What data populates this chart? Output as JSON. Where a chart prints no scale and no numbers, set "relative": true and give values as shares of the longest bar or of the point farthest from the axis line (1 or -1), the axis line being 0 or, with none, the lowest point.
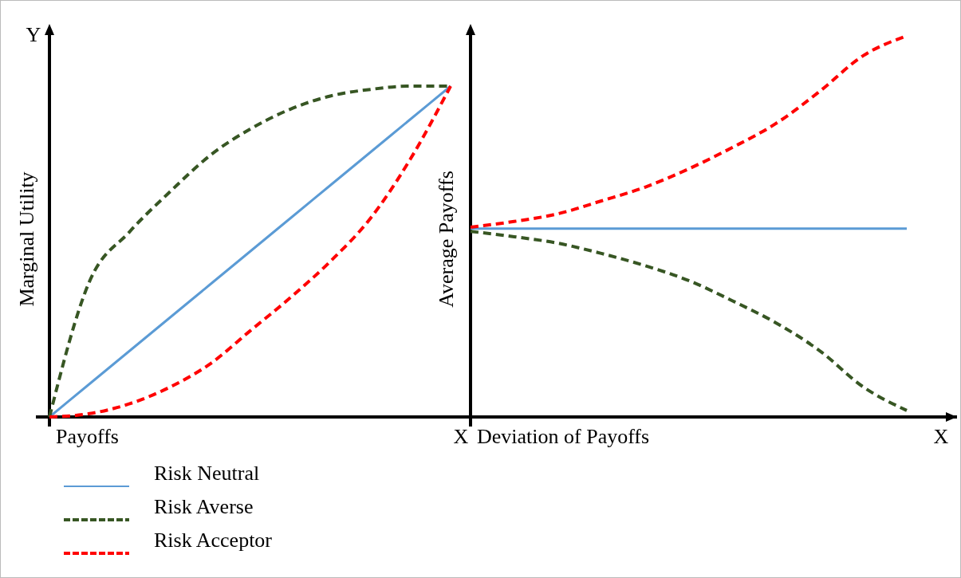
{
  "chart_data": [
    {
      "type": "line",
      "relative": true,
      "xlabel": "Payoffs",
      "ylabel": "Marginal Utility",
      "annotations": [
        "Y",
        "X"
      ],
      "legend": "bottom",
      "categories": [
        null,
        null,
        null,
        null,
        null,
        null,
        null,
        null,
        null,
        null,
        null
      ],
      "series": [
        {
          "name": "Risk Neutral",
          "color": "#5b9bd5",
          "line_style": "solid",
          "values": [
            0,
            0.1,
            0.2,
            0.3,
            0.4,
            0.5,
            0.6,
            0.7,
            0.8,
            0.9,
            1
          ]
        },
        {
          "name": "Risk Averse",
          "color": "#375623",
          "line_style": "dashed",
          "values": [
            0,
            0.41,
            0.56,
            0.68,
            0.79,
            0.87,
            0.93,
            0.97,
            0.99,
            1,
            1
          ]
        },
        {
          "name": "Risk Acceptor",
          "color": "#ff0000",
          "line_style": "dashed",
          "values": [
            0,
            0.01,
            0.04,
            0.09,
            0.16,
            0.26,
            0.36,
            0.47,
            0.6,
            0.78,
            1
          ]
        }
      ]
    },
    {
      "type": "line",
      "relative": true,
      "xlabel": "Deviation of Payoffs",
      "ylabel": "Average Payoffs",
      "annotations": [
        "X"
      ],
      "categories": [
        null,
        null,
        null,
        null,
        null,
        null,
        null,
        null,
        null,
        null,
        null
      ],
      "series": [
        {
          "color": "#5b9bd5",
          "line_style": "solid",
          "values": [
            0.494,
            0.494,
            0.494,
            0.494,
            0.494,
            0.494,
            0.494,
            0.494,
            0.494,
            0.494,
            0.494
          ]
        },
        {
          "color": "#375623",
          "line_style": "dashed",
          "values": [
            0.487,
            0.473,
            0.456,
            0.429,
            0.397,
            0.358,
            0.305,
            0.247,
            0.174,
            0.079,
            0.017
          ]
        },
        {
          "color": "#ff0000",
          "line_style": "dashed",
          "values": [
            0.498,
            0.513,
            0.533,
            0.567,
            0.603,
            0.651,
            0.707,
            0.77,
            0.854,
            0.948,
            1
          ]
        }
      ]
    }
  ]
}
